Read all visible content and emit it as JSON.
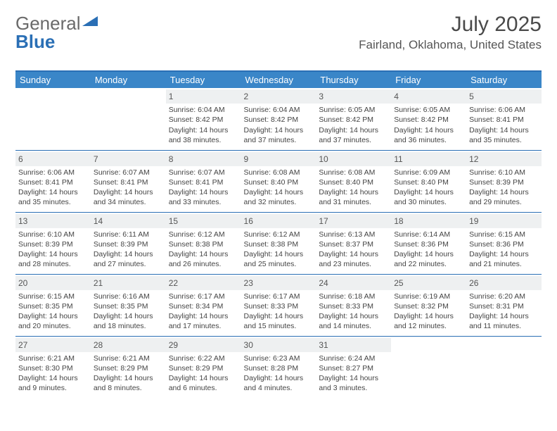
{
  "brand": {
    "part1": "General",
    "part2": "Blue"
  },
  "title": "July 2025",
  "location": "Fairland, Oklahoma, United States",
  "colors": {
    "header_bg": "#3a86c8",
    "accent": "#2a6fb5",
    "daynum_bg": "#eef0f1",
    "text": "#444444"
  },
  "day_headers": [
    "Sunday",
    "Monday",
    "Tuesday",
    "Wednesday",
    "Thursday",
    "Friday",
    "Saturday"
  ],
  "weeks": [
    [
      {
        "n": "",
        "sr": "",
        "ss": "",
        "dl": ""
      },
      {
        "n": "",
        "sr": "",
        "ss": "",
        "dl": ""
      },
      {
        "n": "1",
        "sr": "Sunrise: 6:04 AM",
        "ss": "Sunset: 8:42 PM",
        "dl": "Daylight: 14 hours and 38 minutes."
      },
      {
        "n": "2",
        "sr": "Sunrise: 6:04 AM",
        "ss": "Sunset: 8:42 PM",
        "dl": "Daylight: 14 hours and 37 minutes."
      },
      {
        "n": "3",
        "sr": "Sunrise: 6:05 AM",
        "ss": "Sunset: 8:42 PM",
        "dl": "Daylight: 14 hours and 37 minutes."
      },
      {
        "n": "4",
        "sr": "Sunrise: 6:05 AM",
        "ss": "Sunset: 8:42 PM",
        "dl": "Daylight: 14 hours and 36 minutes."
      },
      {
        "n": "5",
        "sr": "Sunrise: 6:06 AM",
        "ss": "Sunset: 8:41 PM",
        "dl": "Daylight: 14 hours and 35 minutes."
      }
    ],
    [
      {
        "n": "6",
        "sr": "Sunrise: 6:06 AM",
        "ss": "Sunset: 8:41 PM",
        "dl": "Daylight: 14 hours and 35 minutes."
      },
      {
        "n": "7",
        "sr": "Sunrise: 6:07 AM",
        "ss": "Sunset: 8:41 PM",
        "dl": "Daylight: 14 hours and 34 minutes."
      },
      {
        "n": "8",
        "sr": "Sunrise: 6:07 AM",
        "ss": "Sunset: 8:41 PM",
        "dl": "Daylight: 14 hours and 33 minutes."
      },
      {
        "n": "9",
        "sr": "Sunrise: 6:08 AM",
        "ss": "Sunset: 8:40 PM",
        "dl": "Daylight: 14 hours and 32 minutes."
      },
      {
        "n": "10",
        "sr": "Sunrise: 6:08 AM",
        "ss": "Sunset: 8:40 PM",
        "dl": "Daylight: 14 hours and 31 minutes."
      },
      {
        "n": "11",
        "sr": "Sunrise: 6:09 AM",
        "ss": "Sunset: 8:40 PM",
        "dl": "Daylight: 14 hours and 30 minutes."
      },
      {
        "n": "12",
        "sr": "Sunrise: 6:10 AM",
        "ss": "Sunset: 8:39 PM",
        "dl": "Daylight: 14 hours and 29 minutes."
      }
    ],
    [
      {
        "n": "13",
        "sr": "Sunrise: 6:10 AM",
        "ss": "Sunset: 8:39 PM",
        "dl": "Daylight: 14 hours and 28 minutes."
      },
      {
        "n": "14",
        "sr": "Sunrise: 6:11 AM",
        "ss": "Sunset: 8:39 PM",
        "dl": "Daylight: 14 hours and 27 minutes."
      },
      {
        "n": "15",
        "sr": "Sunrise: 6:12 AM",
        "ss": "Sunset: 8:38 PM",
        "dl": "Daylight: 14 hours and 26 minutes."
      },
      {
        "n": "16",
        "sr": "Sunrise: 6:12 AM",
        "ss": "Sunset: 8:38 PM",
        "dl": "Daylight: 14 hours and 25 minutes."
      },
      {
        "n": "17",
        "sr": "Sunrise: 6:13 AM",
        "ss": "Sunset: 8:37 PM",
        "dl": "Daylight: 14 hours and 23 minutes."
      },
      {
        "n": "18",
        "sr": "Sunrise: 6:14 AM",
        "ss": "Sunset: 8:36 PM",
        "dl": "Daylight: 14 hours and 22 minutes."
      },
      {
        "n": "19",
        "sr": "Sunrise: 6:15 AM",
        "ss": "Sunset: 8:36 PM",
        "dl": "Daylight: 14 hours and 21 minutes."
      }
    ],
    [
      {
        "n": "20",
        "sr": "Sunrise: 6:15 AM",
        "ss": "Sunset: 8:35 PM",
        "dl": "Daylight: 14 hours and 20 minutes."
      },
      {
        "n": "21",
        "sr": "Sunrise: 6:16 AM",
        "ss": "Sunset: 8:35 PM",
        "dl": "Daylight: 14 hours and 18 minutes."
      },
      {
        "n": "22",
        "sr": "Sunrise: 6:17 AM",
        "ss": "Sunset: 8:34 PM",
        "dl": "Daylight: 14 hours and 17 minutes."
      },
      {
        "n": "23",
        "sr": "Sunrise: 6:17 AM",
        "ss": "Sunset: 8:33 PM",
        "dl": "Daylight: 14 hours and 15 minutes."
      },
      {
        "n": "24",
        "sr": "Sunrise: 6:18 AM",
        "ss": "Sunset: 8:33 PM",
        "dl": "Daylight: 14 hours and 14 minutes."
      },
      {
        "n": "25",
        "sr": "Sunrise: 6:19 AM",
        "ss": "Sunset: 8:32 PM",
        "dl": "Daylight: 14 hours and 12 minutes."
      },
      {
        "n": "26",
        "sr": "Sunrise: 6:20 AM",
        "ss": "Sunset: 8:31 PM",
        "dl": "Daylight: 14 hours and 11 minutes."
      }
    ],
    [
      {
        "n": "27",
        "sr": "Sunrise: 6:21 AM",
        "ss": "Sunset: 8:30 PM",
        "dl": "Daylight: 14 hours and 9 minutes."
      },
      {
        "n": "28",
        "sr": "Sunrise: 6:21 AM",
        "ss": "Sunset: 8:29 PM",
        "dl": "Daylight: 14 hours and 8 minutes."
      },
      {
        "n": "29",
        "sr": "Sunrise: 6:22 AM",
        "ss": "Sunset: 8:29 PM",
        "dl": "Daylight: 14 hours and 6 minutes."
      },
      {
        "n": "30",
        "sr": "Sunrise: 6:23 AM",
        "ss": "Sunset: 8:28 PM",
        "dl": "Daylight: 14 hours and 4 minutes."
      },
      {
        "n": "31",
        "sr": "Sunrise: 6:24 AM",
        "ss": "Sunset: 8:27 PM",
        "dl": "Daylight: 14 hours and 3 minutes."
      },
      {
        "n": "",
        "sr": "",
        "ss": "",
        "dl": ""
      },
      {
        "n": "",
        "sr": "",
        "ss": "",
        "dl": ""
      }
    ]
  ]
}
